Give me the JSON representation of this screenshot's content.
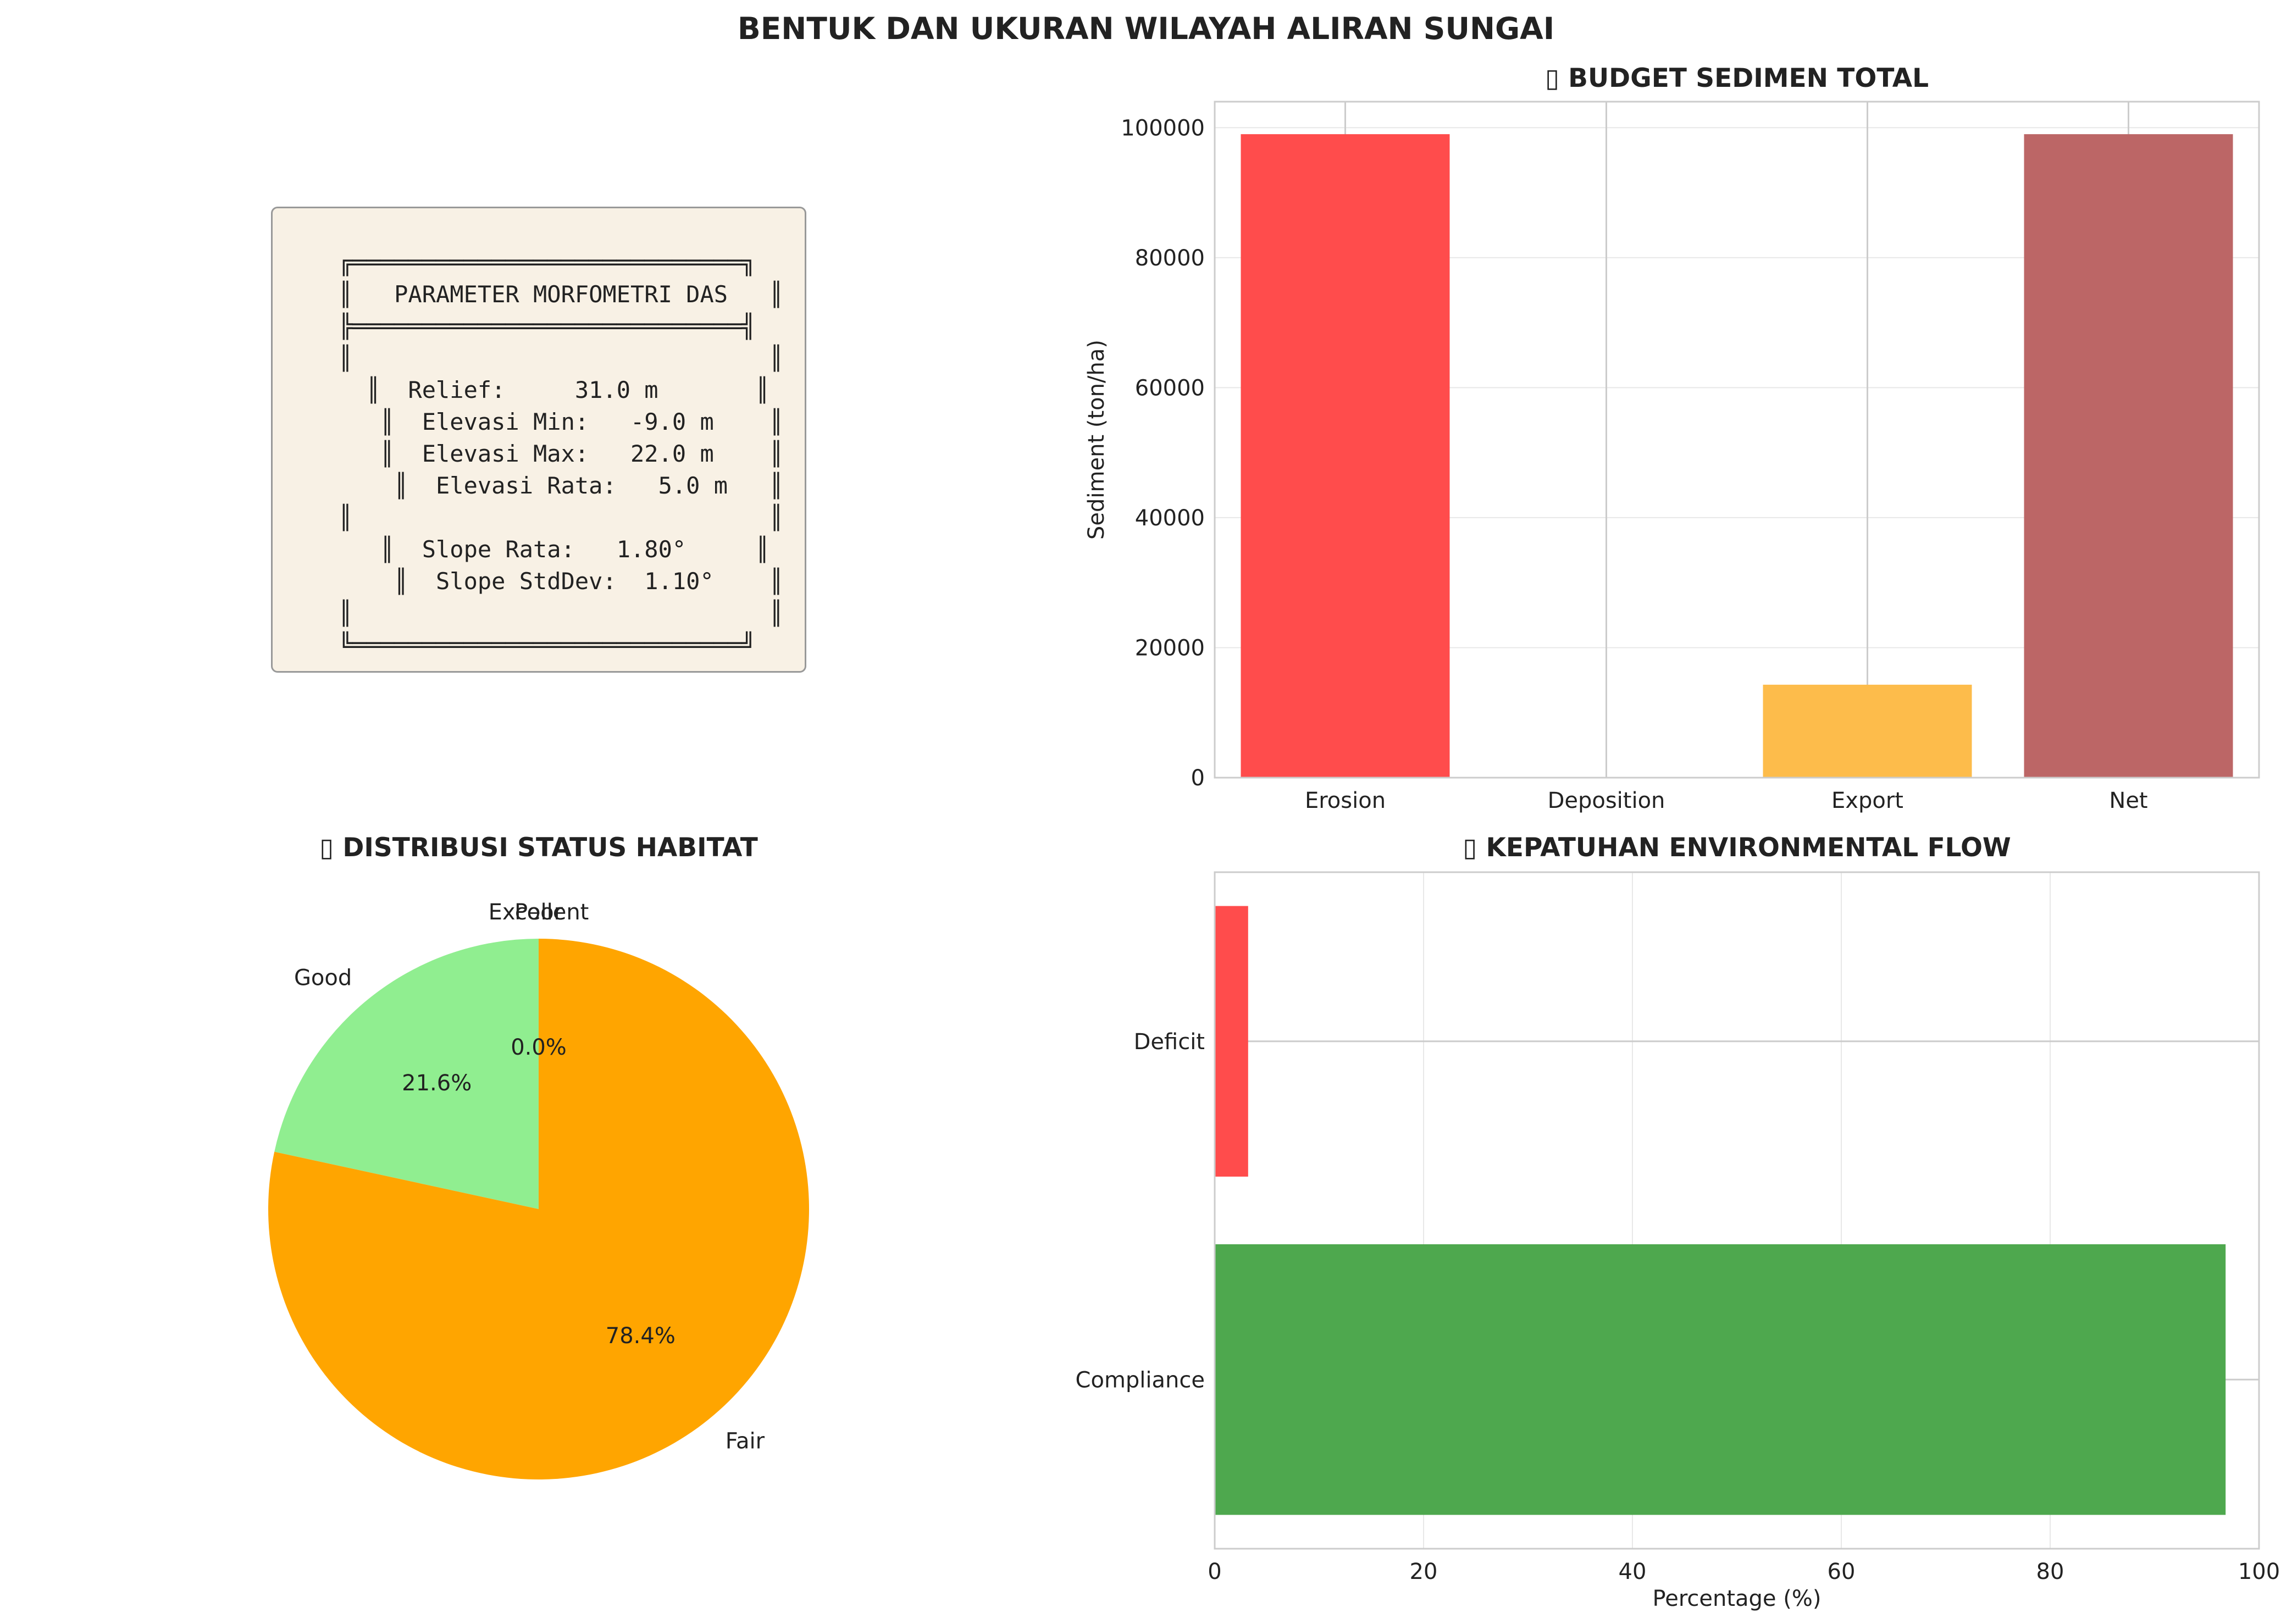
{
  "figure": {
    "title": "BENTUK DAN UKURAN WILAYAH ALIRAN SUNGAI"
  },
  "info_panel": {
    "lines": [
      "╔════════════════════════════╗",
      "║   PARAMETER MORFOMETRI DAS   ║",
      "╠════════════════════════════╣",
      "║                              ║",
      "  ║  Relief:     31.0 m       ║",
      "   ║  Elevasi Min:   -9.0 m    ║",
      "   ║  Elevasi Max:   22.0 m    ║",
      "    ║  Elevasi Rata:   5.0 m   ║",
      "║                              ║",
      "   ║  Slope Rata:   1.80°     ║",
      "    ║  Slope StdDev:  1.10°    ║",
      "║                              ║",
      "╚════════════════════════════╝"
    ]
  },
  "chart_data": [
    {
      "type": "bar",
      "title": "▯ BUDGET SEDIMEN TOTAL",
      "categories": [
        "Erosion",
        "Deposition",
        "Export",
        "Net"
      ],
      "values": [
        99000,
        0,
        14300,
        99000
      ],
      "colors": [
        "#ff4c4c",
        "#90ee90",
        "#fdbc4b",
        "#bc6666"
      ],
      "xlabel": "",
      "ylabel": "Sediment (ton/ha)",
      "ylim": [
        0,
        104000
      ],
      "yticks": [
        0,
        20000,
        40000,
        60000,
        80000,
        100000
      ],
      "grid": true
    },
    {
      "type": "pie",
      "title": "▯ DISTRIBUSI STATUS HABITAT",
      "labels": [
        "Excellent",
        "Good",
        "Fair",
        "Poor"
      ],
      "values": [
        0.0,
        21.6,
        78.4,
        0.0
      ],
      "percent_labels": [
        "0.0%",
        "21.6%",
        "78.4%",
        "0.0%"
      ],
      "colors": [
        "#1f77b4",
        "#90ee90",
        "#ffa500",
        "#ff4c4c"
      ],
      "start_angle_deg": 90
    },
    {
      "type": "bar",
      "orientation": "horizontal",
      "title": "▯ KEPATUHAN ENVIRONMENTAL FLOW",
      "categories": [
        "Compliance",
        "Deficit"
      ],
      "values": [
        96.8,
        3.2
      ],
      "colors": [
        "#4ea84e",
        "#ff4c4c"
      ],
      "xlabel": "Percentage (%)",
      "ylabel": "",
      "xlim": [
        0,
        100
      ],
      "xticks": [
        0,
        20,
        40,
        60,
        80,
        100
      ],
      "grid": true
    }
  ]
}
